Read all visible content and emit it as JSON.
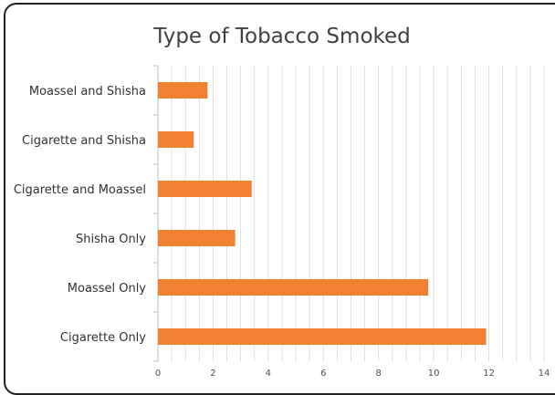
{
  "chart_data": {
    "type": "bar",
    "orientation": "horizontal",
    "title": "Type of Tobacco Smoked",
    "xlabel": "",
    "ylabel": "",
    "categories": [
      "Moassel and Shisha",
      "Cigarette and Shisha",
      "Cigarette and Moassel",
      "Shisha Only",
      "Moassel Only",
      "Cigarette Only"
    ],
    "values": [
      1.8,
      1.3,
      3.4,
      2.8,
      9.8,
      11.9
    ],
    "xlim": [
      0,
      14
    ],
    "x_ticks": [
      "0",
      "2",
      "4",
      "6",
      "8",
      "10",
      "12",
      "14"
    ],
    "grid": true,
    "legend": "none",
    "bar_color": "#F28033",
    "grid_color": "#D9D9D9"
  }
}
